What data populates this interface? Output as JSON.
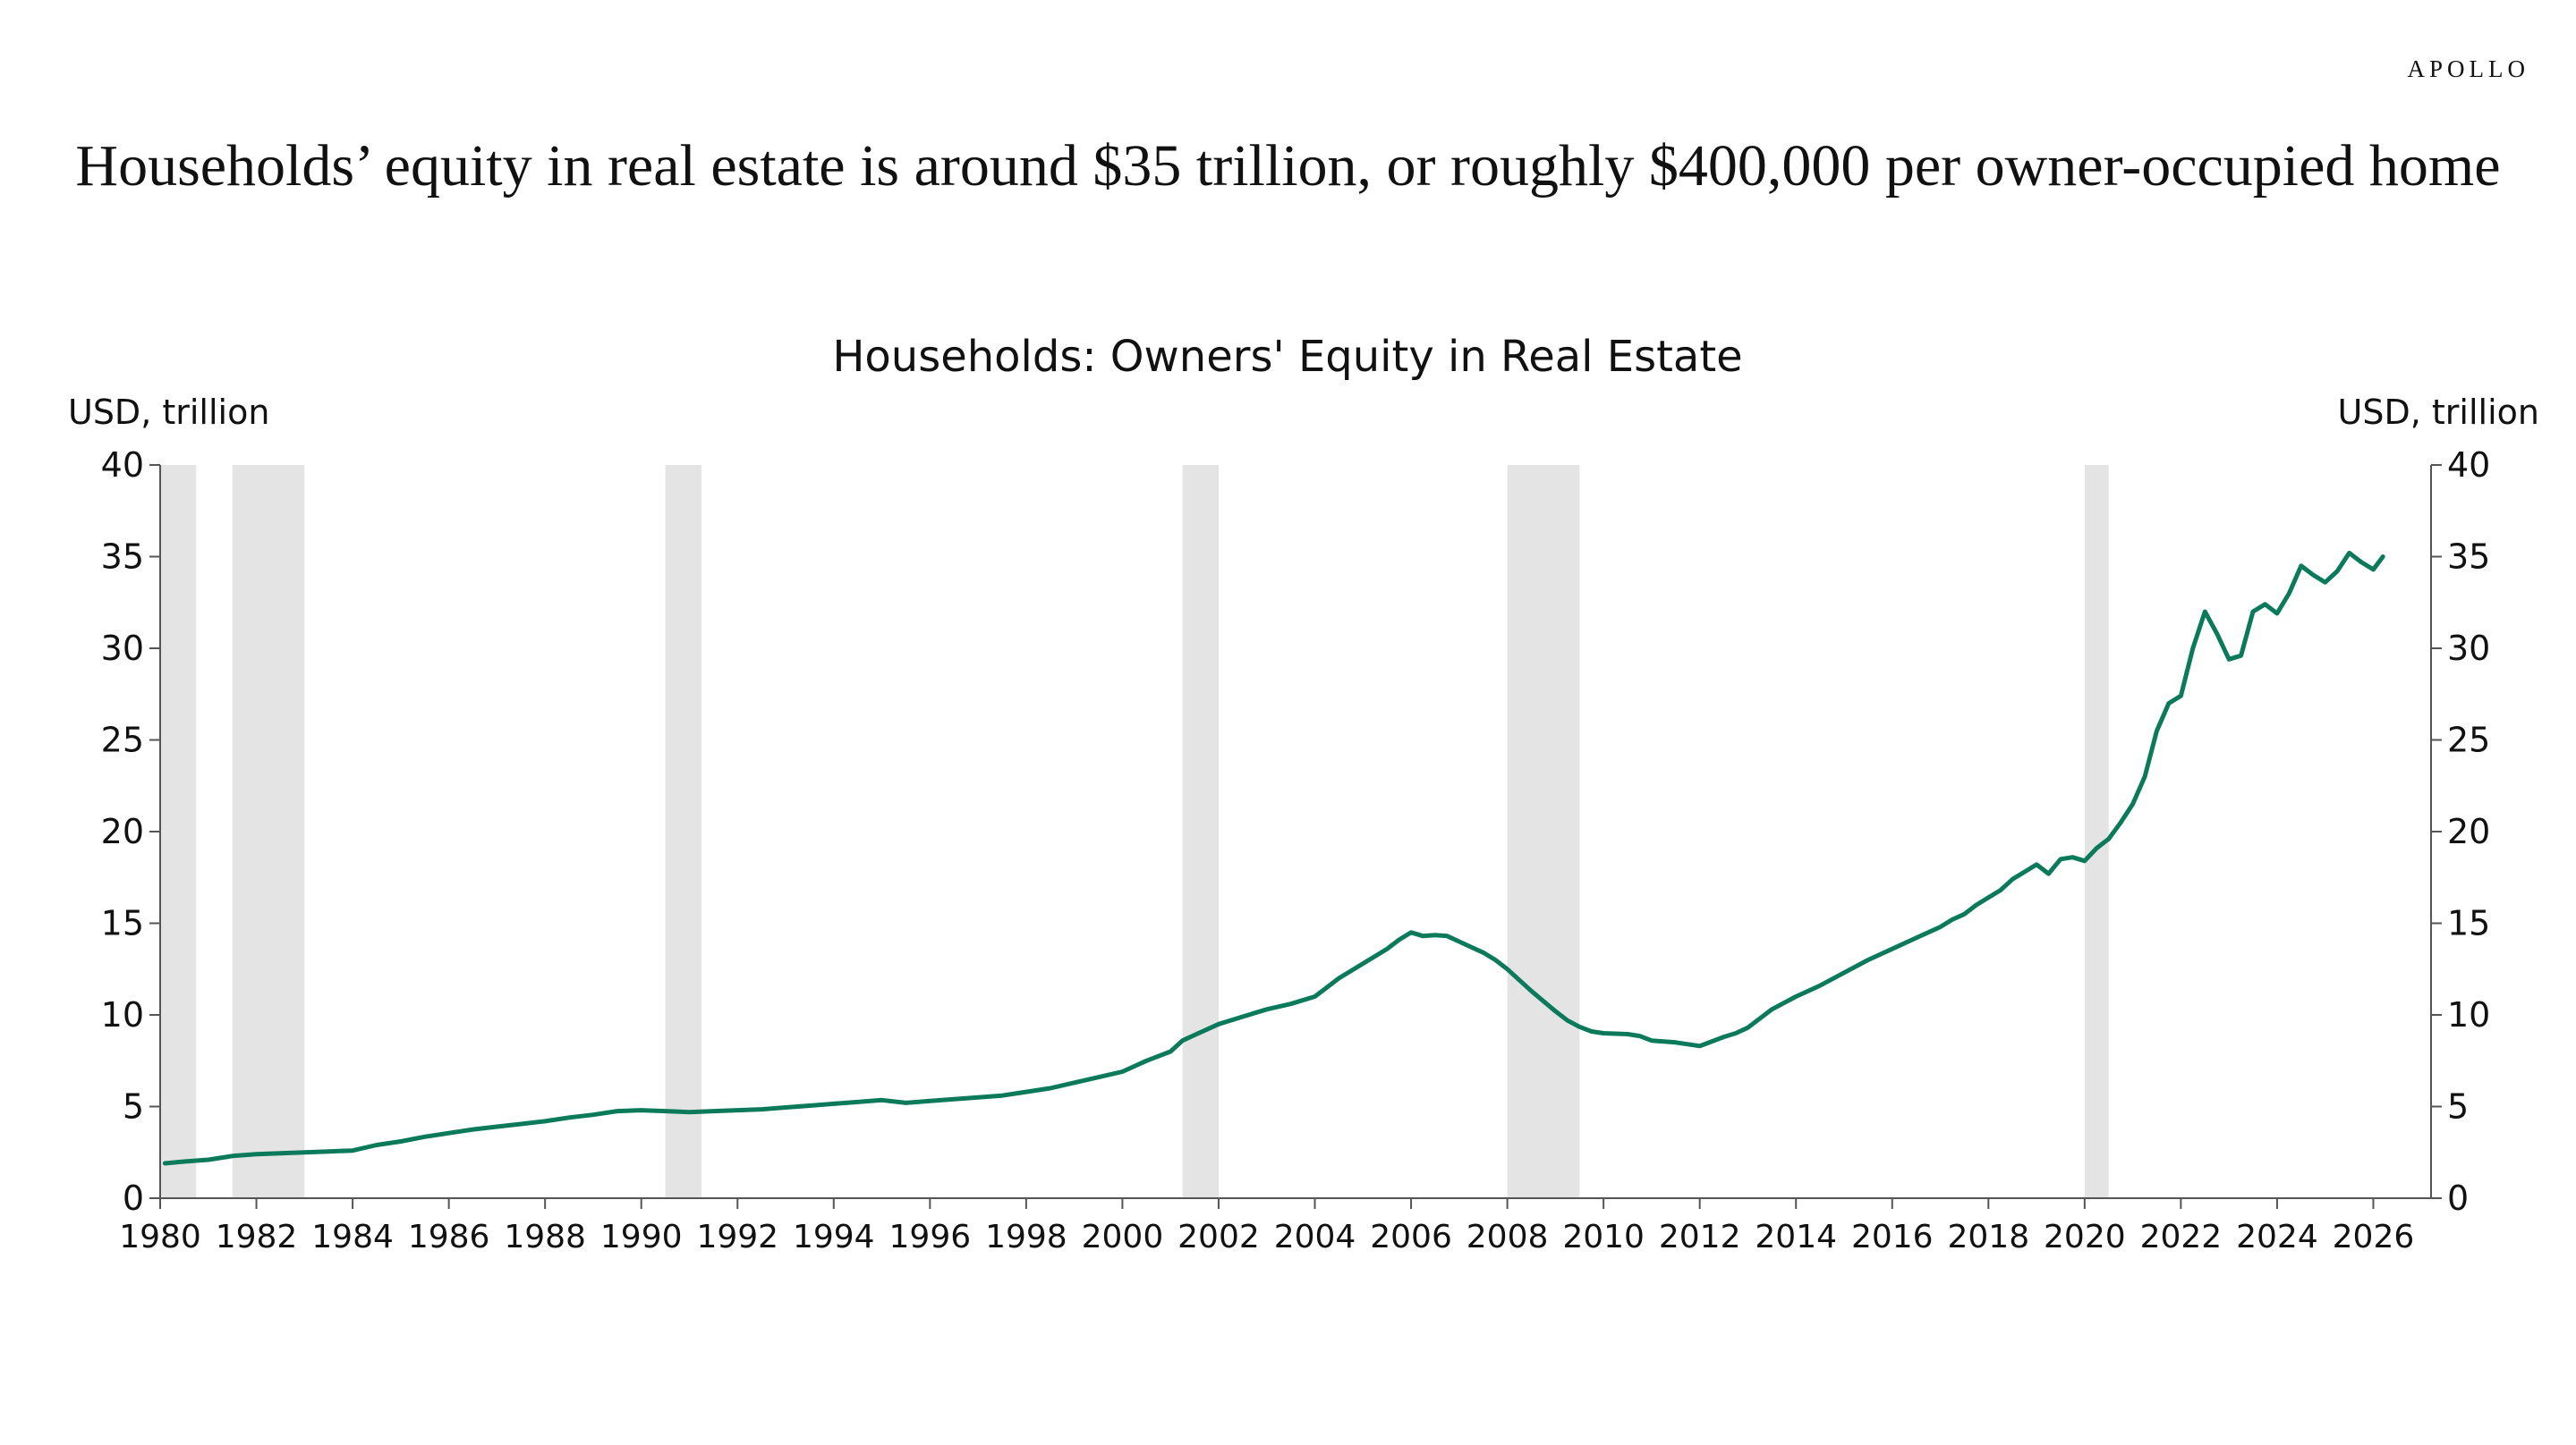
{
  "brand": "APOLLO",
  "headline": "Households’ equity in real estate is around $35 trillion, or roughly $400,000 per owner-occupied home",
  "colors": {
    "line": "#0b7a5a",
    "recession": "#e3e4e3",
    "axis": "#555555",
    "text": "#111111"
  },
  "chart_data": {
    "type": "line",
    "title": "Households: Owners' Equity in Real Estate",
    "ylabel_left": "USD, trillion",
    "ylabel_right": "USD, trillion",
    "xlim": [
      1980,
      2027.2
    ],
    "ylim": [
      0,
      40
    ],
    "xticks": [
      "1980",
      "1982",
      "1984",
      "1986",
      "1988",
      "1990",
      "1992",
      "1994",
      "1996",
      "1998",
      "2000",
      "2002",
      "2004",
      "2006",
      "2008",
      "2010",
      "2012",
      "2014",
      "2016",
      "2018",
      "2020",
      "2022",
      "2024",
      "2026"
    ],
    "yticks": [
      "0",
      "5",
      "10",
      "15",
      "20",
      "25",
      "30",
      "35",
      "40"
    ],
    "grid": false,
    "legend": "none",
    "recessions": [
      [
        1980.0,
        1980.75
      ],
      [
        1981.5,
        1983.0
      ],
      [
        1990.5,
        1991.25
      ],
      [
        2001.25,
        2002.0
      ],
      [
        2008.0,
        2009.5
      ],
      [
        2020.0,
        2020.5
      ]
    ],
    "series": [
      {
        "x": [
          1980.1,
          1980.5,
          1981.0,
          1981.5,
          1982.0,
          1982.5,
          1983.0,
          1983.5,
          1984.0,
          1984.5,
          1985.0,
          1985.5,
          1986.0,
          1986.5,
          1987.0,
          1987.5,
          1988.0,
          1988.5,
          1989.0,
          1989.5,
          1990.0,
          1990.5,
          1991.0,
          1991.5,
          1992.0,
          1992.5,
          1993.0,
          1993.5,
          1994.0,
          1994.5,
          1995.0,
          1995.5,
          1996.0,
          1996.5,
          1997.0,
          1997.5,
          1998.0,
          1998.5,
          1999.0,
          1999.5,
          2000.0,
          2000.5,
          2001.0,
          2001.25,
          2001.5,
          2002.0,
          2002.5,
          2003.0,
          2003.5,
          2004.0,
          2004.25,
          2004.5,
          2005.0,
          2005.5,
          2005.75,
          2006.0,
          2006.25,
          2006.5,
          2006.75,
          2007.0,
          2007.5,
          2007.75,
          2008.0,
          2008.5,
          2009.0,
          2009.25,
          2009.5,
          2009.75,
          2010.0,
          2010.5,
          2010.75,
          2011.0,
          2011.5,
          2012.0,
          2012.5,
          2012.75,
          2013.0,
          2013.5,
          2014.0,
          2014.5,
          2015.0,
          2015.5,
          2016.0,
          2016.5,
          2017.0,
          2017.25,
          2017.5,
          2017.75,
          2018.0,
          2018.25,
          2018.5,
          2018.75,
          2019.0,
          2019.25,
          2019.5,
          2019.75,
          2020.0,
          2020.25,
          2020.5,
          2020.75,
          2021.0,
          2021.25,
          2021.5,
          2021.75,
          2022.0,
          2022.25,
          2022.5,
          2022.75,
          2023.0,
          2023.25,
          2023.5,
          2023.75,
          2024.0,
          2024.25,
          2024.5,
          2024.75,
          2025.0,
          2025.25,
          2025.5,
          2025.75,
          2026.0,
          2026.2
        ],
        "values": [
          1.9,
          2.0,
          2.1,
          2.3,
          2.4,
          2.45,
          2.5,
          2.55,
          2.6,
          2.9,
          3.1,
          3.35,
          3.55,
          3.75,
          3.9,
          4.05,
          4.2,
          4.4,
          4.55,
          4.75,
          4.8,
          4.75,
          4.7,
          4.75,
          4.8,
          4.85,
          4.95,
          5.05,
          5.15,
          5.25,
          5.35,
          5.2,
          5.3,
          5.4,
          5.5,
          5.6,
          5.8,
          6.0,
          6.3,
          6.6,
          6.9,
          7.5,
          8.0,
          8.6,
          8.9,
          9.5,
          9.9,
          10.3,
          10.6,
          11.0,
          11.5,
          12.0,
          12.8,
          13.6,
          14.1,
          14.5,
          14.3,
          14.35,
          14.3,
          14.0,
          13.4,
          13.0,
          12.5,
          11.3,
          10.2,
          9.7,
          9.35,
          9.1,
          9.0,
          8.95,
          8.85,
          8.6,
          8.5,
          8.3,
          8.8,
          9.0,
          9.3,
          10.3,
          11.0,
          11.6,
          12.3,
          13.0,
          13.6,
          14.2,
          14.8,
          15.2,
          15.5,
          16.0,
          16.4,
          16.8,
          17.4,
          17.8,
          18.2,
          17.7,
          18.5,
          18.6,
          18.4,
          19.1,
          19.6,
          20.5,
          21.5,
          23.0,
          25.5,
          27.0,
          27.4,
          30.0,
          32.0,
          30.8,
          29.4,
          29.6,
          32.0,
          32.4,
          31.9,
          33.0,
          34.5,
          34.0,
          33.6,
          34.2,
          35.2,
          34.7,
          34.3,
          35.0
        ]
      }
    ]
  }
}
